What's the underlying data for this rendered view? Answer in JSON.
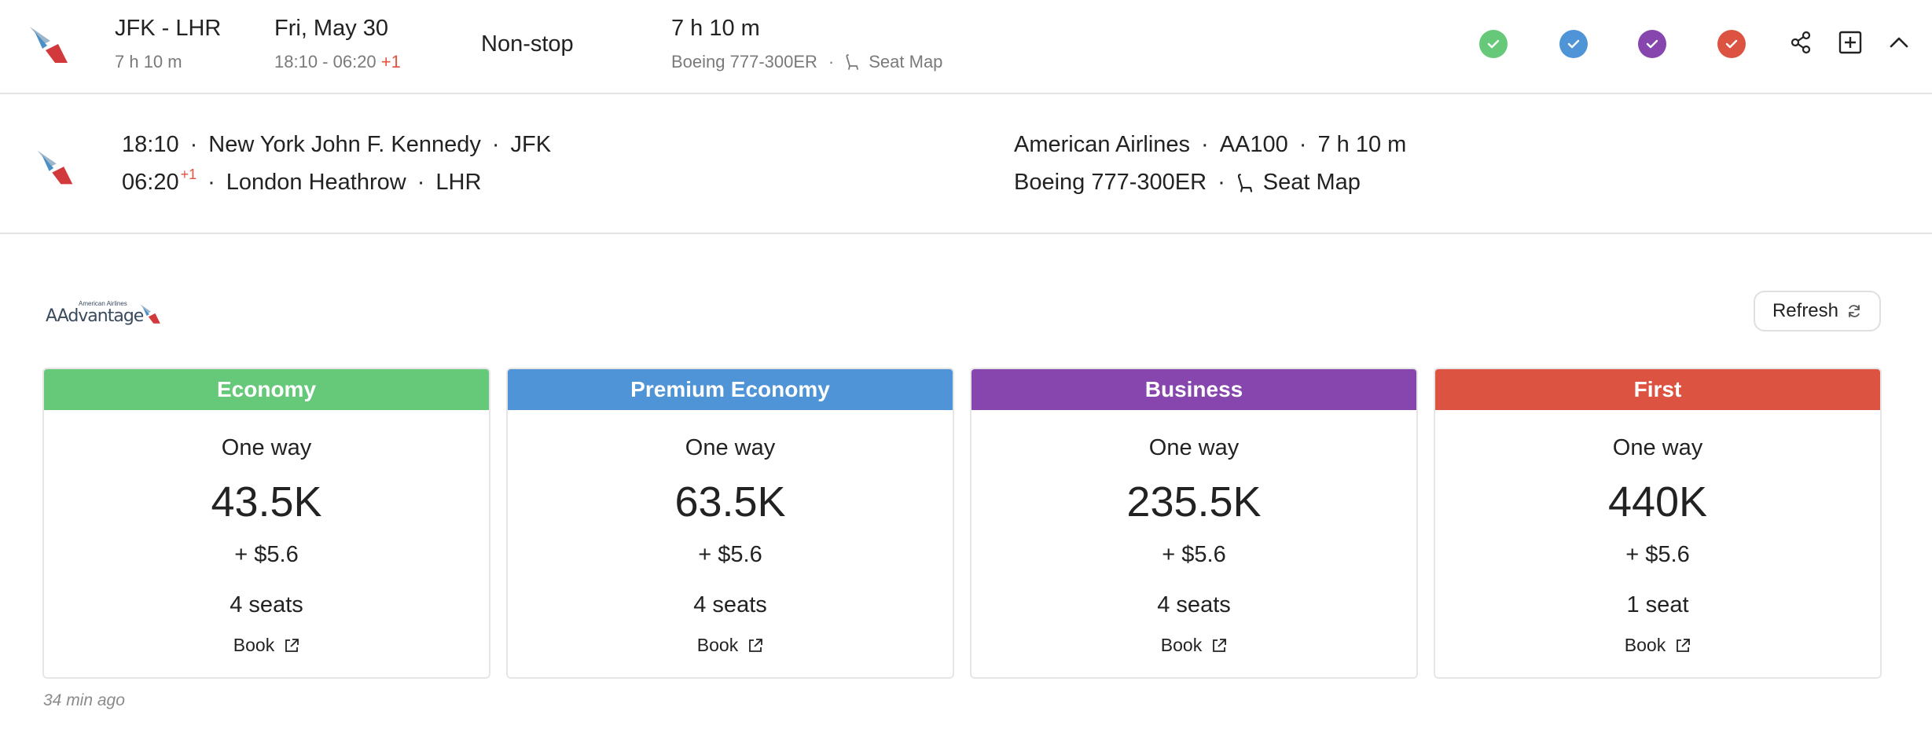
{
  "summary": {
    "route": "JFK - LHR",
    "duration_short": "7 h 10 m",
    "date": "Fri, May 30",
    "times": "18:10 - 06:20",
    "day_offset": "+1",
    "stops": "Non-stop",
    "duration": "7 h 10 m",
    "aircraft": "Boeing 777-300ER",
    "seat_map_label": "Seat Map",
    "availability_checks": [
      {
        "cabin": "Economy",
        "color": "#66c97a"
      },
      {
        "cabin": "Premium Economy",
        "color": "#4f94d6"
      },
      {
        "cabin": "Business",
        "color": "#8646ad"
      },
      {
        "cabin": "First",
        "color": "#dd5341"
      }
    ],
    "actions": [
      "share-icon",
      "add-icon",
      "chevron-up-icon"
    ]
  },
  "segment": {
    "departure_time": "18:10",
    "departure_airport": "New York John F. Kennedy",
    "departure_code": "JFK",
    "arrival_time": "06:20",
    "arrival_day_offset": "+1",
    "arrival_airport": "London Heathrow",
    "arrival_code": "LHR",
    "airline": "American Airlines",
    "flight_number": "AA100",
    "duration": "7 h 10 m",
    "aircraft": "Boeing 777-300ER",
    "seat_map_label": "Seat Map"
  },
  "program": {
    "logo_small": "American Airlines",
    "logo_big": "AAdvantage",
    "refresh_label": "Refresh"
  },
  "cabins": [
    {
      "name": "Economy",
      "color": "#66c97a",
      "trip": "One way",
      "miles": "43.5K",
      "taxes": "+ $5.6",
      "seats": "4 seats",
      "book": "Book"
    },
    {
      "name": "Premium Economy",
      "color": "#4f94d6",
      "trip": "One way",
      "miles": "63.5K",
      "taxes": "+ $5.6",
      "seats": "4 seats",
      "book": "Book"
    },
    {
      "name": "Business",
      "color": "#8646ad",
      "trip": "One way",
      "miles": "235.5K",
      "taxes": "+ $5.6",
      "seats": "4 seats",
      "book": "Book"
    },
    {
      "name": "First",
      "color": "#dd5341",
      "trip": "One way",
      "miles": "440K",
      "taxes": "+ $5.6",
      "seats": "1 seat",
      "book": "Book"
    }
  ],
  "last_updated": "34 min ago"
}
